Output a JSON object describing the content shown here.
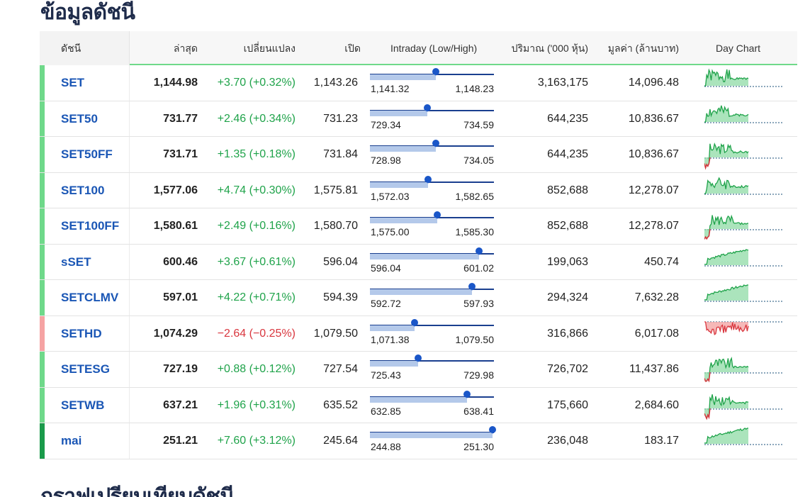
{
  "title": "ข้อมูลดัชนี",
  "next_title": "กราฟเปรียบเทียบดัชนี",
  "headers": {
    "name": "ดัชนี",
    "last": "ล่าสุด",
    "change": "เปลี่ยนแปลง",
    "open": "เปิด",
    "intraday": "Intraday (Low/High)",
    "volume": "ปริมาณ ('000 หุ้น)",
    "value": "มูลค่า (ล้านบาท)",
    "daychart": "Day Chart"
  },
  "colors": {
    "up": "#1fa34a",
    "down": "#d9363e",
    "up_bar": "#6fd98a",
    "down_bar": "#f5a3a3",
    "mai_bar": "#1a9a4a"
  },
  "rows": [
    {
      "name": "SET",
      "last": "1,144.98",
      "change": "+3.70 (+0.32%)",
      "dir": "up",
      "open": "1,143.26",
      "low": "1,141.32",
      "high": "1,148.23",
      "pos": 0.53,
      "volume": "3,163,175",
      "value": "14,096.48",
      "bar": "up",
      "chart": "up"
    },
    {
      "name": "SET50",
      "last": "731.77",
      "change": "+2.46 (+0.34%)",
      "dir": "up",
      "open": "731.23",
      "low": "729.34",
      "high": "734.59",
      "pos": 0.46,
      "volume": "644,235",
      "value": "10,836.67",
      "bar": "up",
      "chart": "up"
    },
    {
      "name": "SET50FF",
      "last": "731.71",
      "change": "+1.35 (+0.18%)",
      "dir": "up",
      "open": "731.84",
      "low": "728.98",
      "high": "734.05",
      "pos": 0.53,
      "volume": "644,235",
      "value": "10,836.67",
      "bar": "up",
      "chart": "mixed"
    },
    {
      "name": "SET100",
      "last": "1,577.06",
      "change": "+4.74 (+0.30%)",
      "dir": "up",
      "open": "1,575.81",
      "low": "1,572.03",
      "high": "1,582.65",
      "pos": 0.47,
      "volume": "852,688",
      "value": "12,278.07",
      "bar": "up",
      "chart": "up"
    },
    {
      "name": "SET100FF",
      "last": "1,580.61",
      "change": "+2.49 (+0.16%)",
      "dir": "up",
      "open": "1,580.70",
      "low": "1,575.00",
      "high": "1,585.30",
      "pos": 0.54,
      "volume": "852,688",
      "value": "12,278.07",
      "bar": "up",
      "chart": "mixed"
    },
    {
      "name": "sSET",
      "last": "600.46",
      "change": "+3.67 (+0.61%)",
      "dir": "up",
      "open": "596.04",
      "low": "596.04",
      "high": "601.02",
      "pos": 0.88,
      "volume": "199,063",
      "value": "450.74",
      "bar": "up",
      "chart": "rise"
    },
    {
      "name": "SETCLMV",
      "last": "597.01",
      "change": "+4.22 (+0.71%)",
      "dir": "up",
      "open": "594.39",
      "low": "592.72",
      "high": "597.93",
      "pos": 0.82,
      "volume": "294,324",
      "value": "7,632.28",
      "bar": "up",
      "chart": "rise"
    },
    {
      "name": "SETHD",
      "last": "1,074.29",
      "change": "−2.64 (−0.25%)",
      "dir": "down",
      "open": "1,079.50",
      "low": "1,071.38",
      "high": "1,079.50",
      "pos": 0.36,
      "volume": "316,866",
      "value": "6,017.08",
      "bar": "down",
      "chart": "down"
    },
    {
      "name": "SETESG",
      "last": "727.19",
      "change": "+0.88 (+0.12%)",
      "dir": "up",
      "open": "727.54",
      "low": "725.43",
      "high": "729.98",
      "pos": 0.39,
      "volume": "726,702",
      "value": "11,437.86",
      "bar": "up",
      "chart": "mixed"
    },
    {
      "name": "SETWB",
      "last": "637.21",
      "change": "+1.96 (+0.31%)",
      "dir": "up",
      "open": "635.52",
      "low": "632.85",
      "high": "638.41",
      "pos": 0.78,
      "volume": "175,660",
      "value": "2,684.60",
      "bar": "up",
      "chart": "mixed"
    },
    {
      "name": "mai",
      "last": "251.21",
      "change": "+7.60 (+3.12%)",
      "dir": "up",
      "open": "245.64",
      "low": "244.88",
      "high": "251.30",
      "pos": 0.99,
      "volume": "236,048",
      "value": "183.17",
      "bar": "mai",
      "chart": "rise"
    }
  ]
}
